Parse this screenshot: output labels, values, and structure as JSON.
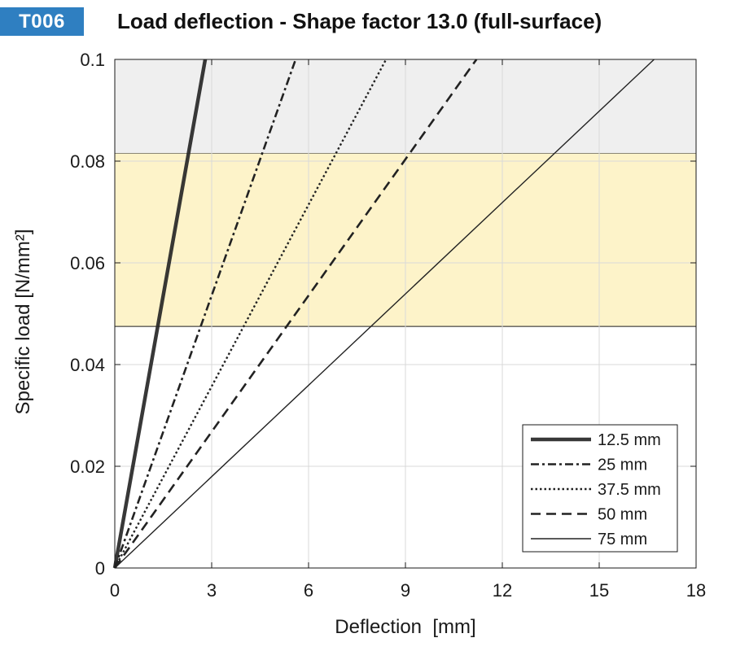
{
  "badge": "T006",
  "chart_data": {
    "type": "line",
    "title": "Load deflection - Shape factor 13.0 (full-surface)",
    "xlabel": "Deflection  [mm]",
    "ylabel": "Specific load [N/mm²]",
    "xlim": [
      0,
      18
    ],
    "ylim": [
      0,
      0.1
    ],
    "xticks": [
      0,
      3,
      6,
      9,
      12,
      15,
      18
    ],
    "yticks": [
      0,
      0.02,
      0.04,
      0.06,
      0.08,
      0.1
    ],
    "xtick_labels": [
      "0",
      "3",
      "6",
      "9",
      "12",
      "15",
      "18"
    ],
    "ytick_labels": [
      "0",
      "0.02",
      "0.04",
      "0.06",
      "0.08",
      "0.1"
    ],
    "grid": true,
    "legend_position": "bottom-right",
    "bands": [
      {
        "y0": 0.0815,
        "y1": 0.1,
        "color": "#efefef"
      },
      {
        "y0": 0.0475,
        "y1": 0.0815,
        "color": "#fdf3c9"
      }
    ],
    "series": [
      {
        "name": "12.5 mm",
        "style": "solid-thick",
        "color": "#222222",
        "x": [
          0,
          2.8
        ],
        "y": [
          0,
          0.1
        ]
      },
      {
        "name": "25 mm",
        "style": "dashdot",
        "color": "#222222",
        "x": [
          0,
          5.6
        ],
        "y": [
          0,
          0.1
        ]
      },
      {
        "name": "37.5 mm",
        "style": "dotted",
        "color": "#222222",
        "x": [
          0,
          8.4
        ],
        "y": [
          0,
          0.1
        ]
      },
      {
        "name": "50 mm",
        "style": "dashed",
        "color": "#222222",
        "x": [
          0,
          11.2
        ],
        "y": [
          0,
          0.1
        ]
      },
      {
        "name": "75 mm",
        "style": "solid-thin",
        "color": "#222222",
        "x": [
          0,
          16.7
        ],
        "y": [
          0,
          0.1
        ]
      }
    ]
  }
}
